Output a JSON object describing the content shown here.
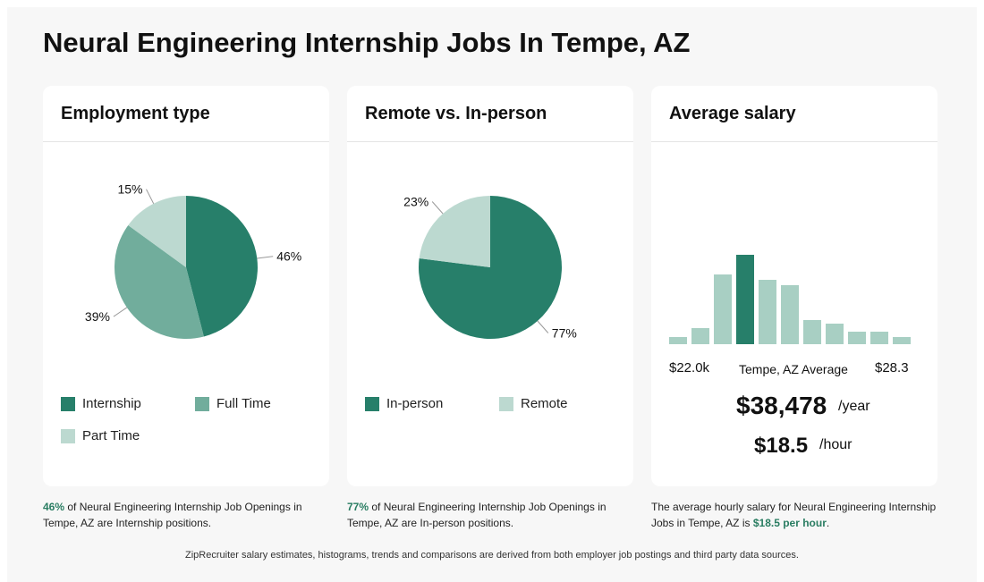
{
  "page_title": "Neural Engineering Internship Jobs In Tempe, AZ",
  "colors": {
    "dark": "#277f6a",
    "mid": "#71ad9c",
    "light": "#bcd9d0",
    "hist_light": "#a8cfc3",
    "accent_text": "#2a7d62"
  },
  "cards": {
    "employment": {
      "title": "Employment type"
    },
    "remote": {
      "title": "Remote vs. In-person"
    },
    "salary": {
      "title": "Average salary"
    }
  },
  "chart_data": [
    {
      "type": "pie",
      "title": "Employment type",
      "slices": [
        {
          "label": "Internship",
          "value": 46,
          "display": "46%",
          "color": "#277f6a"
        },
        {
          "label": "Full Time",
          "value": 39,
          "display": "39%",
          "color": "#71ad9c"
        },
        {
          "label": "Part Time",
          "value": 15,
          "display": "15%",
          "color": "#bcd9d0"
        }
      ],
      "legend": "bottom"
    },
    {
      "type": "pie",
      "title": "Remote vs. In-person",
      "slices": [
        {
          "label": "In-person",
          "value": 77,
          "display": "77%",
          "color": "#277f6a"
        },
        {
          "label": "Remote",
          "value": 23,
          "display": "23%",
          "color": "#bcd9d0"
        }
      ],
      "legend": "bottom"
    },
    {
      "type": "bar",
      "title": "Average salary",
      "values": [
        8,
        18,
        78,
        100,
        72,
        66,
        27,
        23,
        14,
        14,
        8
      ],
      "highlight_index": 3,
      "xlabel_left": "$22.0k",
      "xlabel_mid": "Tempe, AZ Average",
      "xlabel_right": "$28.3",
      "ylim": [
        0,
        100
      ]
    }
  ],
  "salary": {
    "yearly": "$38,478",
    "yearly_unit": "/year",
    "hourly": "$18.5",
    "hourly_unit": "/hour"
  },
  "notes": {
    "employment": {
      "highlight": "46%",
      "text": " of Neural Engineering Internship Job Openings in Tempe, AZ are Internship positions."
    },
    "remote": {
      "highlight": "77%",
      "text": " of Neural Engineering Internship Job Openings in Tempe, AZ are In-person positions."
    },
    "salary": {
      "text": "The average hourly salary for Neural Engineering Internship Jobs in Tempe, AZ is ",
      "highlight": "$18.5 per hour",
      "end": "."
    }
  },
  "footer": "ZipRecruiter salary estimates, histograms, trends and comparisons are derived from both employer job postings and third party data sources."
}
